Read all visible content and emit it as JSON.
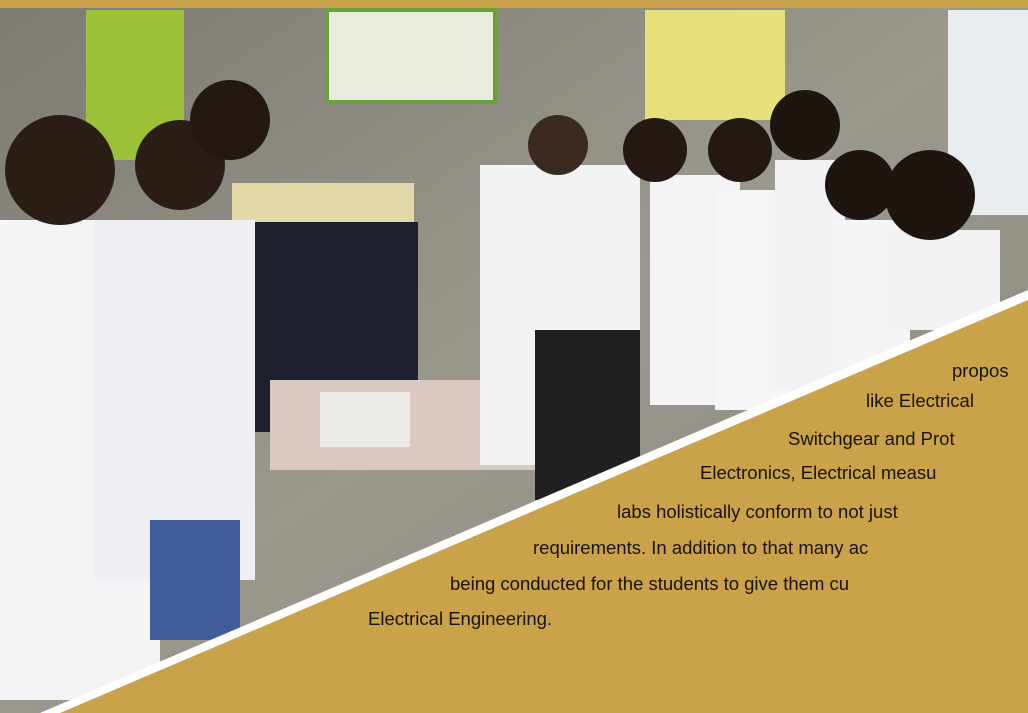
{
  "caption": {
    "lines": [
      "propos",
      "like Electrical",
      "Switchgear and Prot",
      "Electronics, Electrical measu",
      "labs holistically conform to not just",
      "requirements. In addition to that many ac",
      "being conducted for the students to give them cu",
      "Electrical Engineering."
    ]
  }
}
